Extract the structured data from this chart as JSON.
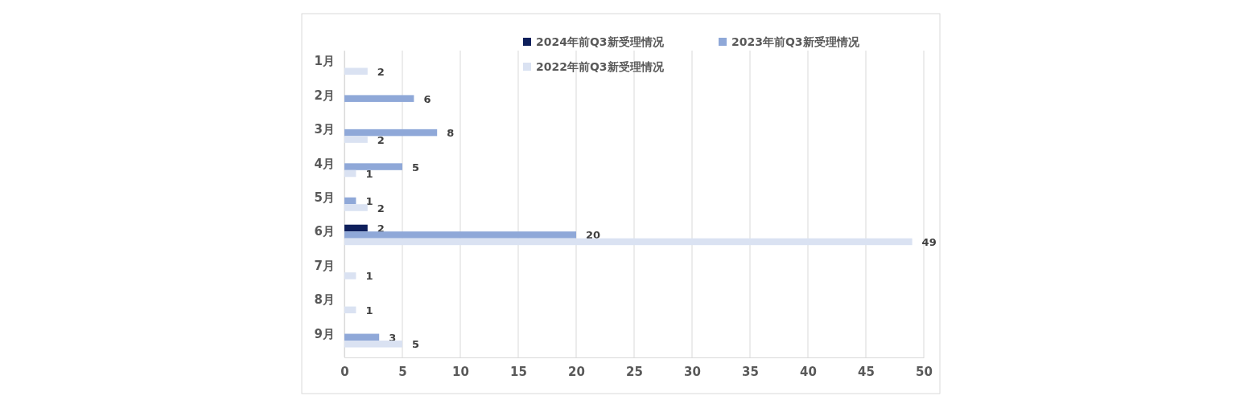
{
  "chart_data": {
    "type": "bar",
    "orientation": "horizontal",
    "categories": [
      "1月",
      "2月",
      "3月",
      "4月",
      "5月",
      "6月",
      "7月",
      "8月",
      "9月"
    ],
    "series": [
      {
        "name": "2024年前Q3新受理情况",
        "color": "#0e1f5b",
        "values": [
          null,
          null,
          null,
          null,
          null,
          2,
          null,
          null,
          null
        ]
      },
      {
        "name": "2023年前Q3新受理情况",
        "color": "#8fa8d8",
        "values": [
          null,
          6,
          8,
          5,
          1,
          20,
          null,
          null,
          3
        ]
      },
      {
        "name": "2022年前Q3新受理情况",
        "color": "#dae2f2",
        "values": [
          2,
          null,
          2,
          1,
          2,
          49,
          1,
          1,
          5
        ]
      }
    ],
    "xlim": [
      0,
      50
    ],
    "xticks": [
      0,
      5,
      10,
      15,
      20,
      25,
      30,
      35,
      40,
      45,
      50
    ],
    "grid": "x",
    "legend": "top right",
    "data_labels": true
  }
}
